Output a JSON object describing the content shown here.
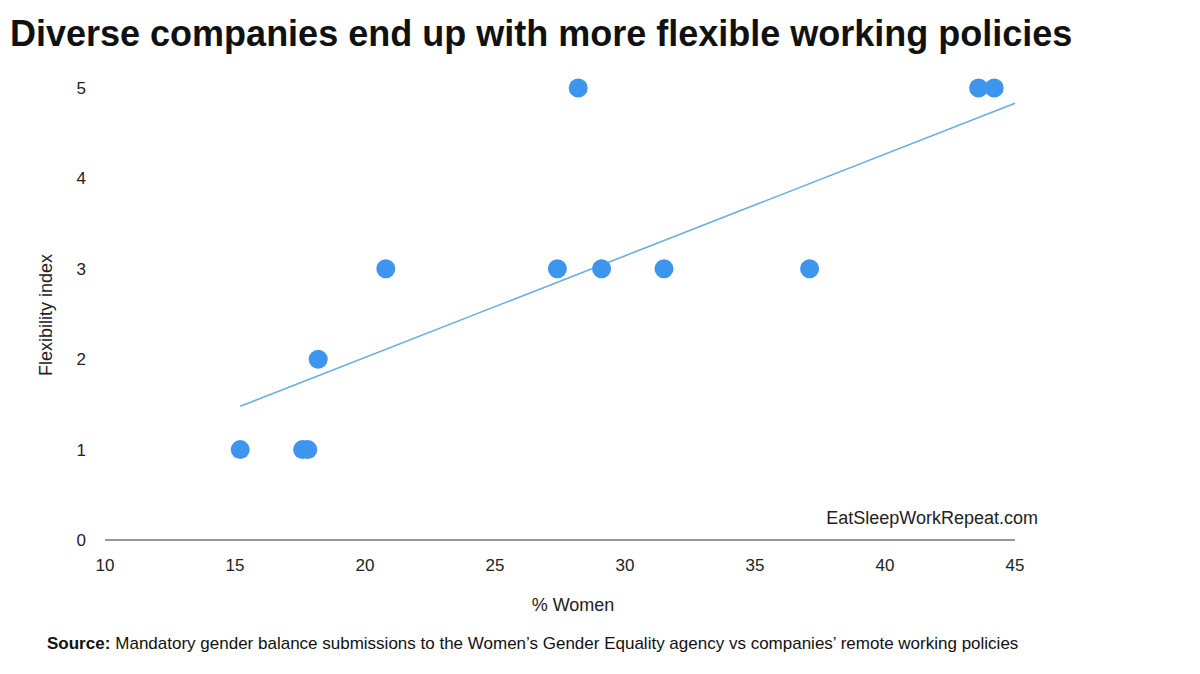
{
  "chart_data": {
    "type": "scatter",
    "title": "Diverse companies end up with more flexible working policies",
    "x_label": "% Women",
    "y_label": "Flexibility index",
    "watermark": "EatSleepWorkRepeat.com",
    "source_label": "Source:",
    "source": "Mandatory gender balance submissions to the Women’s Gender Equality agency vs companies’ remote working policies",
    "x": [
      15.2,
      17.6,
      17.8,
      18.2,
      20.8,
      27.4,
      28.2,
      29.1,
      31.5,
      37.1,
      43.6,
      44.2
    ],
    "values": [
      1,
      1,
      1,
      2,
      3,
      3,
      5,
      3,
      3,
      3,
      5,
      5
    ],
    "color": "#3d95ee",
    "marker": "circle",
    "trend": {
      "type": "line",
      "x": [
        15.2,
        45
      ],
      "values": [
        1.48,
        4.83
      ],
      "color": "#6aaee0",
      "line_style": "solid"
    },
    "xlim": [
      10,
      45
    ],
    "xticks": [
      10,
      15,
      20,
      25,
      30,
      35,
      40,
      45
    ],
    "ylim": [
      0,
      5
    ],
    "yticks": [
      0,
      1,
      2,
      3,
      4,
      5
    ],
    "grid": false
  }
}
